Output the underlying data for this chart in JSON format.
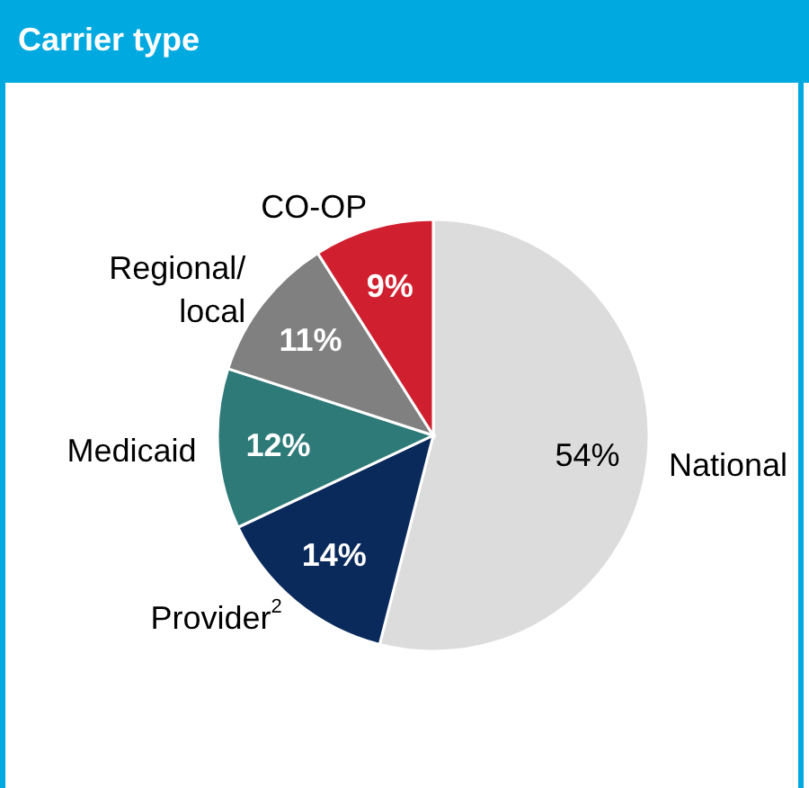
{
  "chart_data": {
    "type": "pie",
    "title": "Carrier type",
    "categories": [
      "National",
      "Provider$^{2}$",
      "Medicaid",
      "Regional/local",
      "CO-OP"
    ],
    "values": [
      54,
      14,
      12,
      11,
      9
    ],
    "value_labels": [
      "54%",
      "14%",
      "12%",
      "11%",
      "9%"
    ],
    "colors": [
      "#dcdcdc",
      "#0b2a5c",
      "#2e7a78",
      "#808080",
      "#d0202f"
    ]
  }
}
